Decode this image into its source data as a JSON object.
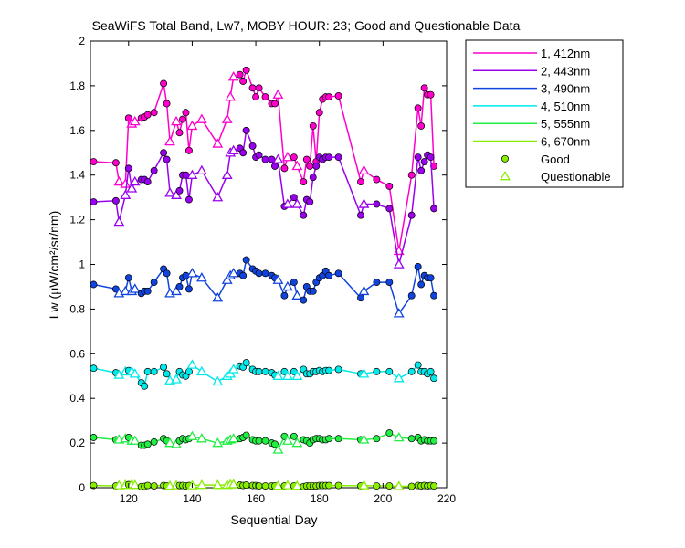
{
  "chart_data": {
    "type": "line",
    "title": "SeaWiFS Total Band,  Lw7, MOBY HOUR: 23;  Good and Questionable Data",
    "xlabel": "Sequential Day",
    "ylabel": "Lw (μW/cm²/sr/nm)",
    "xlim": [
      108,
      220
    ],
    "ylim": [
      0,
      2
    ],
    "xticks": [
      120,
      140,
      160,
      180,
      200,
      220
    ],
    "yticks": [
      0,
      0.2,
      0.4,
      0.6,
      0.8,
      1,
      1.2,
      1.4,
      1.6,
      1.8,
      2
    ],
    "grid": false,
    "legend_position": "outside-right",
    "marker_legend": [
      {
        "label": "Good",
        "marker": "circle"
      },
      {
        "label": "Questionable",
        "marker": "triangle"
      }
    ],
    "x": [
      109,
      116,
      117,
      119,
      120,
      121,
      122,
      124,
      125,
      126,
      128,
      131,
      132,
      133,
      135,
      136,
      137,
      138,
      139,
      140,
      143,
      148,
      151,
      152,
      153,
      155,
      156,
      157,
      159,
      160,
      161,
      163,
      165,
      166,
      167,
      169,
      170,
      172,
      173,
      175,
      176,
      177,
      178,
      179,
      180,
      181,
      182,
      183,
      186,
      193,
      194,
      198,
      202,
      205,
      209,
      211,
      212,
      213,
      214,
      215,
      216
    ],
    "quality": [
      "G",
      "G",
      "Q",
      "Q",
      "G",
      "Q",
      "Q",
      "G",
      "G",
      "G",
      "G",
      "G",
      "G",
      "Q",
      "Q",
      "G",
      "G",
      "G",
      "G",
      "Q",
      "Q",
      "Q",
      "Q",
      "Q",
      "Q",
      "G",
      "G",
      "G",
      "G",
      "G",
      "G",
      "G",
      "G",
      "G",
      "Q",
      "G",
      "Q",
      "G",
      "Q",
      "G",
      "G",
      "G",
      "G",
      "G",
      "G",
      "G",
      "G",
      "G",
      "G",
      "G",
      "Q",
      "G",
      "G",
      "Q",
      "G",
      "G",
      "G",
      "G",
      "G",
      "G",
      "G"
    ],
    "series": [
      {
        "name": "1, 412nm",
        "color": "#ff00cc",
        "values": [
          1.46,
          1.455,
          1.37,
          1.36,
          1.655,
          1.63,
          1.64,
          1.655,
          1.66,
          1.67,
          1.68,
          1.81,
          1.72,
          1.55,
          1.64,
          1.59,
          1.65,
          1.68,
          1.51,
          1.62,
          1.65,
          1.54,
          1.65,
          1.75,
          1.84,
          1.85,
          1.82,
          1.87,
          1.79,
          1.75,
          1.79,
          1.75,
          1.72,
          1.72,
          1.76,
          1.43,
          1.48,
          1.48,
          1.44,
          1.37,
          1.47,
          1.44,
          1.62,
          1.46,
          1.68,
          1.74,
          1.75,
          1.75,
          1.755,
          1.37,
          1.42,
          1.38,
          1.35,
          1.06,
          1.4,
          1.7,
          1.62,
          1.79,
          1.76,
          1.76,
          1.44
        ]
      },
      {
        "name": "2, 443nm",
        "color": "#9900ee",
        "values": [
          1.28,
          1.285,
          1.19,
          1.31,
          1.43,
          1.34,
          1.37,
          1.38,
          1.38,
          1.37,
          1.42,
          1.5,
          1.47,
          1.32,
          1.31,
          1.33,
          1.4,
          1.4,
          1.29,
          1.4,
          1.42,
          1.3,
          1.4,
          1.5,
          1.51,
          1.52,
          1.5,
          1.6,
          1.53,
          1.48,
          1.49,
          1.47,
          1.47,
          1.44,
          1.47,
          1.26,
          1.27,
          1.3,
          1.27,
          1.22,
          1.29,
          1.28,
          1.39,
          1.44,
          1.48,
          1.47,
          1.48,
          1.48,
          1.48,
          1.22,
          1.27,
          1.27,
          1.25,
          1.0,
          1.22,
          1.48,
          1.42,
          1.46,
          1.49,
          1.48,
          1.25
        ]
      },
      {
        "name": "3, 490nm",
        "color": "#1144dd",
        "values": [
          0.91,
          0.89,
          0.87,
          0.88,
          0.94,
          0.88,
          0.89,
          0.87,
          0.88,
          0.88,
          0.92,
          0.98,
          0.96,
          0.87,
          0.88,
          0.9,
          0.94,
          0.95,
          0.89,
          0.96,
          0.94,
          0.85,
          0.93,
          0.95,
          0.96,
          0.96,
          0.95,
          1.02,
          0.98,
          0.97,
          0.96,
          0.96,
          0.95,
          0.94,
          0.93,
          0.86,
          0.9,
          0.92,
          0.86,
          0.84,
          0.9,
          0.88,
          0.88,
          0.92,
          0.94,
          0.95,
          0.97,
          0.95,
          0.96,
          0.85,
          0.88,
          0.92,
          0.92,
          0.78,
          0.86,
          0.99,
          0.91,
          0.95,
          0.94,
          0.94,
          0.86
        ]
      },
      {
        "name": "4, 510nm",
        "color": "#00e8e8",
        "values": [
          0.535,
          0.515,
          0.505,
          0.52,
          0.525,
          0.52,
          0.51,
          0.47,
          0.455,
          0.52,
          0.52,
          0.54,
          0.51,
          0.48,
          0.485,
          0.52,
          0.505,
          0.5,
          0.52,
          0.55,
          0.52,
          0.475,
          0.5,
          0.51,
          0.53,
          0.545,
          0.54,
          0.56,
          0.53,
          0.52,
          0.52,
          0.52,
          0.515,
          0.505,
          0.5,
          0.52,
          0.5,
          0.52,
          0.5,
          0.53,
          0.51,
          0.51,
          0.52,
          0.52,
          0.525,
          0.52,
          0.525,
          0.525,
          0.53,
          0.51,
          0.51,
          0.52,
          0.52,
          0.49,
          0.52,
          0.55,
          0.52,
          0.52,
          0.51,
          0.52,
          0.49
        ]
      },
      {
        "name": "5, 555nm",
        "color": "#22ee44",
        "values": [
          0.225,
          0.215,
          0.215,
          0.22,
          0.225,
          0.21,
          0.21,
          0.19,
          0.19,
          0.195,
          0.205,
          0.22,
          0.21,
          0.2,
          0.195,
          0.21,
          0.22,
          0.215,
          0.22,
          0.23,
          0.22,
          0.2,
          0.21,
          0.215,
          0.22,
          0.22,
          0.225,
          0.235,
          0.215,
          0.21,
          0.21,
          0.21,
          0.2,
          0.195,
          0.17,
          0.23,
          0.21,
          0.23,
          0.2,
          0.215,
          0.21,
          0.2,
          0.215,
          0.22,
          0.22,
          0.215,
          0.215,
          0.22,
          0.22,
          0.215,
          0.215,
          0.22,
          0.245,
          0.225,
          0.22,
          0.225,
          0.21,
          0.215,
          0.21,
          0.21,
          0.21
        ]
      },
      {
        "name": "6, 670nm",
        "color": "#88ee00",
        "values": [
          0.01,
          0.008,
          0.01,
          0.012,
          0.014,
          0.015,
          0.012,
          0.005,
          0.006,
          0.01,
          0.008,
          0.01,
          0.008,
          0.008,
          0.01,
          0.01,
          0.01,
          0.008,
          0.01,
          0.01,
          0.012,
          0.012,
          0.012,
          0.014,
          0.015,
          0.012,
          0.01,
          0.012,
          0.01,
          0.01,
          0.008,
          0.008,
          0.008,
          0.008,
          0.008,
          0.008,
          0.01,
          0.008,
          0.008,
          0.005,
          0.008,
          0.008,
          0.008,
          0.008,
          0.01,
          0.01,
          0.01,
          0.01,
          0.01,
          0.008,
          0.01,
          0.008,
          0.008,
          0.006,
          0.006,
          0.01,
          0.008,
          0.01,
          0.008,
          0.01,
          0.008
        ]
      }
    ]
  }
}
